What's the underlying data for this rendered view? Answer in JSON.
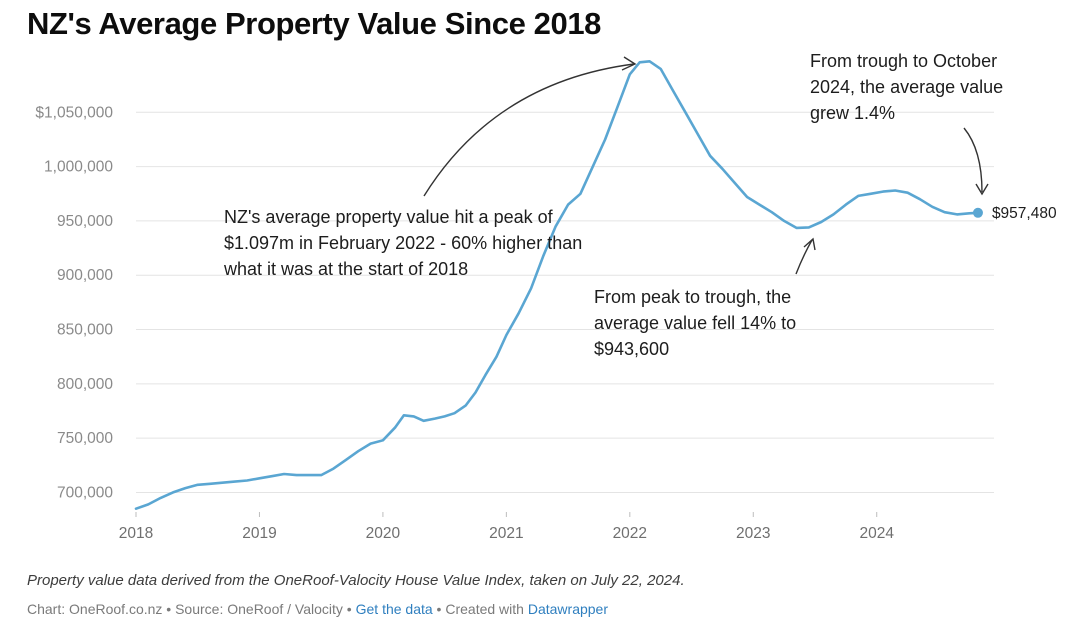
{
  "chart_data": {
    "type": "line",
    "title": "NZ's Average Property Value Since 2018",
    "xlabel": "",
    "ylabel": "",
    "xlim": [
      2018.0,
      2024.95
    ],
    "ylim": [
      682000,
      1100000
    ],
    "y_ticks": [
      700000,
      750000,
      800000,
      850000,
      900000,
      950000,
      1000000,
      1050000
    ],
    "y_tick_labels": [
      "700,000",
      "750,000",
      "800,000",
      "850,000",
      "900,000",
      "950,000",
      "1,000,000",
      "$1,050,000"
    ],
    "x_ticks": [
      2018,
      2019,
      2020,
      2021,
      2022,
      2023,
      2024
    ],
    "x_tick_labels": [
      "2018",
      "2019",
      "2020",
      "2021",
      "2022",
      "2023",
      "2024"
    ],
    "grid": true,
    "line_color": "#5aa6d2",
    "series": [
      {
        "name": "Average property value",
        "x": [
          2018.0,
          2018.1,
          2018.2,
          2018.3,
          2018.4,
          2018.5,
          2018.6,
          2018.7,
          2018.8,
          2018.9,
          2019.0,
          2019.1,
          2019.2,
          2019.3,
          2019.4,
          2019.5,
          2019.6,
          2019.7,
          2019.8,
          2019.9,
          2020.0,
          2020.1,
          2020.17,
          2020.25,
          2020.33,
          2020.42,
          2020.5,
          2020.58,
          2020.67,
          2020.75,
          2020.83,
          2020.92,
          2021.0,
          2021.1,
          2021.2,
          2021.3,
          2021.4,
          2021.5,
          2021.6,
          2021.7,
          2021.8,
          2021.9,
          2022.0,
          2022.08,
          2022.16,
          2022.25,
          2022.35,
          2022.45,
          2022.55,
          2022.65,
          2022.75,
          2022.85,
          2022.95,
          2023.05,
          2023.15,
          2023.25,
          2023.35,
          2023.45,
          2023.55,
          2023.65,
          2023.75,
          2023.85,
          2023.95,
          2024.05,
          2024.15,
          2024.25,
          2024.35,
          2024.45,
          2024.55,
          2024.65,
          2024.75,
          2024.82
        ],
        "values": [
          685000,
          689000,
          695000,
          700000,
          704000,
          707000,
          708000,
          709000,
          710000,
          711000,
          713000,
          715000,
          717000,
          716000,
          716000,
          716000,
          722000,
          730000,
          738000,
          745000,
          748000,
          760000,
          771000,
          770000,
          766000,
          768000,
          770000,
          773000,
          780000,
          792000,
          808000,
          825000,
          845000,
          865000,
          888000,
          918000,
          945000,
          965000,
          975000,
          1000000,
          1025000,
          1055000,
          1085000,
          1096000,
          1097000,
          1090000,
          1070000,
          1050000,
          1030000,
          1010000,
          998000,
          985000,
          972000,
          965000,
          958000,
          950000,
          943600,
          944000,
          949000,
          956000,
          965000,
          973000,
          975000,
          977000,
          978000,
          976000,
          970000,
          963000,
          958000,
          956000,
          957000,
          957480
        ]
      }
    ],
    "end_point": {
      "x": 2024.82,
      "value": 957480,
      "label": "$957,480"
    },
    "annotations": [
      "NZ's average property value hit a peak of $1.097m in February 2022 - 60% higher than what it was at the start of 2018",
      "From peak to trough, the average value fell 14% to $943,600",
      "From trough to October 2024, the average value grew 1.4%"
    ]
  },
  "notes": "Property value data derived from the OneRoof-Valocity House Value Index, taken on July 22, 2024.",
  "footer": {
    "chart_credit": "Chart: OneRoof.co.nz",
    "source": "Source: OneRoof / Valocity",
    "separator": " • ",
    "get_data_link": "Get the data",
    "created_with_prefix": "Created with",
    "tool_link": "Datawrapper"
  }
}
